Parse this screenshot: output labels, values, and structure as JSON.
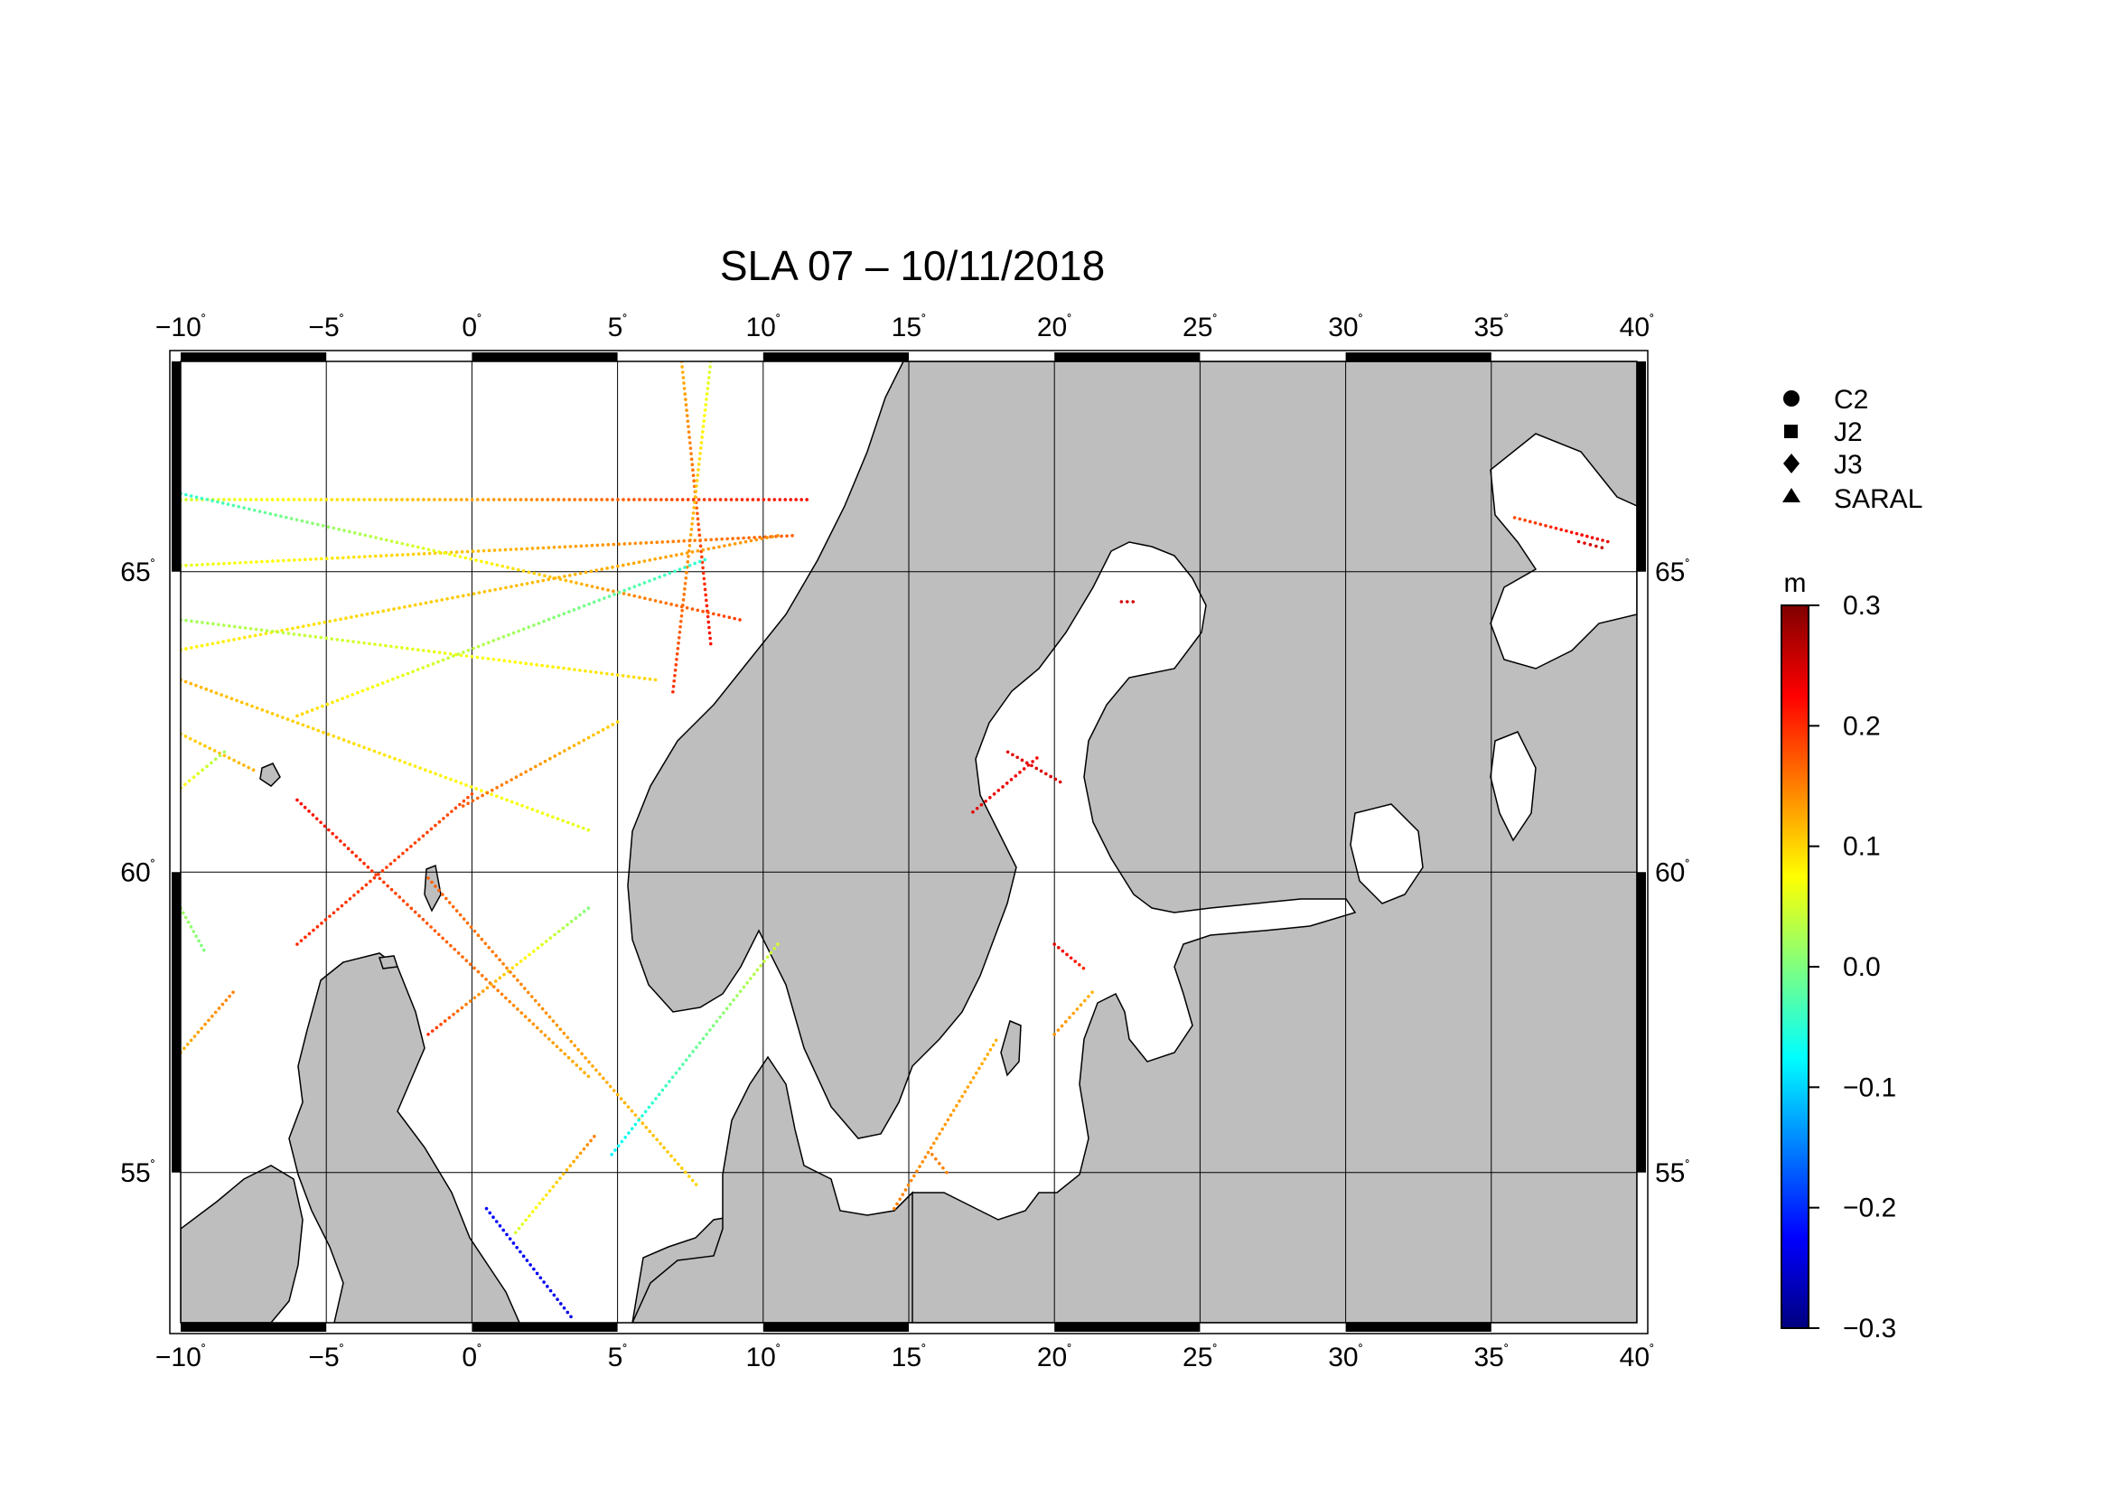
{
  "title": "SLA 07 – 10/11/2018",
  "map": {
    "lon_range": [
      -10,
      40
    ],
    "lat_range": [
      52.5,
      68.5
    ],
    "lon_ticks": [
      "−10",
      "−5",
      "0",
      "5",
      "10",
      "15",
      "20",
      "25",
      "30",
      "35",
      "40"
    ],
    "lat_ticks": [
      "55",
      "60",
      "65"
    ],
    "degree_symbol": "˚",
    "land_color": "#bebebe",
    "sea_color": "#ffffff",
    "grid": true
  },
  "legend": {
    "items": [
      {
        "label": "C2",
        "icon": "circle-icon"
      },
      {
        "label": "J2",
        "icon": "square-icon"
      },
      {
        "label": "J3",
        "icon": "diamond-icon"
      },
      {
        "label": "SARAL",
        "icon": "triangle-icon"
      }
    ]
  },
  "colorbar": {
    "unit": "m",
    "min": -0.3,
    "max": 0.3,
    "tick_labels": [
      "0.3",
      "0.2",
      "0.1",
      "0.0",
      "−0.1",
      "−0.2",
      "−0.3"
    ],
    "colors": [
      "#00007f",
      "#0000ff",
      "#007fff",
      "#00ffff",
      "#7fff7f",
      "#ffff00",
      "#ff7f00",
      "#ff0000",
      "#7f0000"
    ]
  },
  "tracks": [
    {
      "lon": [
        7.2,
        8.2
      ],
      "lat": [
        68.5,
        63.8
      ],
      "sla": [
        0.12,
        0.22
      ]
    },
    {
      "lon": [
        8.2,
        6.9
      ],
      "lat": [
        68.5,
        63.0
      ],
      "sla": [
        0.05,
        0.2
      ]
    },
    {
      "lon": [
        -10,
        11.5
      ],
      "lat": [
        66.2,
        66.2
      ],
      "sla": [
        0.05,
        0.22
      ]
    },
    {
      "lon": [
        -10,
        11
      ],
      "lat": [
        65.1,
        65.6
      ],
      "sla": [
        0.06,
        0.17
      ]
    },
    {
      "lon": [
        -10,
        9.2
      ],
      "lat": [
        66.3,
        64.2
      ],
      "sla": [
        -0.05,
        0.19
      ]
    },
    {
      "lon": [
        -10,
        10.5
      ],
      "lat": [
        63.7,
        65.6
      ],
      "sla": [
        0.08,
        0.14
      ]
    },
    {
      "lon": [
        -10,
        6.3
      ],
      "lat": [
        64.2,
        63.2
      ],
      "sla": [
        0.02,
        0.1
      ]
    },
    {
      "lon": [
        -6,
        8
      ],
      "lat": [
        62.6,
        65.2
      ],
      "sla": [
        0.1,
        -0.05
      ]
    },
    {
      "lon": [
        -10,
        4
      ],
      "lat": [
        63.2,
        60.7
      ],
      "sla": [
        0.12,
        0.06
      ]
    },
    {
      "lon": [
        -10,
        -7.5
      ],
      "lat": [
        62.3,
        61.7
      ],
      "sla": [
        0.1,
        0.12
      ]
    },
    {
      "lon": [
        -10,
        -8.5
      ],
      "lat": [
        61.4,
        62.0
      ],
      "sla": [
        0.08,
        0.02
      ]
    },
    {
      "lon": [
        -0.3,
        5
      ],
      "lat": [
        61.1,
        62.5
      ],
      "sla": [
        0.17,
        0.1
      ]
    },
    {
      "lon": [
        -6,
        4
      ],
      "lat": [
        61.2,
        56.6
      ],
      "sla": [
        0.22,
        0.12
      ]
    },
    {
      "lon": [
        -6,
        0
      ],
      "lat": [
        58.8,
        61.3
      ],
      "sla": [
        0.2,
        0.18
      ]
    },
    {
      "lon": [
        -1.5,
        4
      ],
      "lat": [
        57.3,
        59.4
      ],
      "sla": [
        0.2,
        0.0
      ]
    },
    {
      "lon": [
        -1.5,
        7.7
      ],
      "lat": [
        59.9,
        54.8
      ],
      "sla": [
        0.17,
        0.1
      ]
    },
    {
      "lon": [
        4.8,
        10.5
      ],
      "lat": [
        55.3,
        58.8
      ],
      "sla": [
        -0.08,
        0.05
      ]
    },
    {
      "lon": [
        1.5,
        4.2
      ],
      "lat": [
        54.0,
        55.6
      ],
      "sla": [
        0.05,
        0.15
      ]
    },
    {
      "lon": [
        0.5,
        3.4
      ],
      "lat": [
        54.4,
        52.6
      ],
      "sla": [
        -0.22,
        -0.24
      ]
    },
    {
      "lon": [
        -10,
        -9.2
      ],
      "lat": [
        59.4,
        58.7
      ],
      "sla": [
        0.02,
        0.0
      ]
    },
    {
      "lon": [
        -10,
        -8.2
      ],
      "lat": [
        57.0,
        58.0
      ],
      "sla": [
        0.12,
        0.15
      ]
    },
    {
      "lon": [
        18.4,
        20.2
      ],
      "lat": [
        62.0,
        61.5
      ],
      "sla": [
        0.24,
        0.25
      ]
    },
    {
      "lon": [
        17.2,
        19.4
      ],
      "lat": [
        61.0,
        61.9
      ],
      "sla": [
        0.24,
        0.23
      ]
    },
    {
      "lon": [
        20.0,
        21.0
      ],
      "lat": [
        58.8,
        58.4
      ],
      "sla": [
        0.24,
        0.2
      ]
    },
    {
      "lon": [
        20.0,
        21.3
      ],
      "lat": [
        57.3,
        58.0
      ],
      "sla": [
        0.14,
        0.12
      ]
    },
    {
      "lon": [
        14.5,
        18.0
      ],
      "lat": [
        54.4,
        57.2
      ],
      "sla": [
        0.15,
        0.12
      ]
    },
    {
      "lon": [
        15.8,
        16.3
      ],
      "lat": [
        55.3,
        55.0
      ],
      "sla": [
        0.15,
        0.15
      ]
    },
    {
      "lon": [
        22.3,
        22.7
      ],
      "lat": [
        64.5,
        64.5
      ],
      "sla": [
        0.25,
        0.25
      ]
    },
    {
      "lon": [
        35.8,
        39.0
      ],
      "lat": [
        65.9,
        65.5
      ],
      "sla": [
        0.18,
        0.24
      ]
    },
    {
      "lon": [
        38.0,
        38.8
      ],
      "lat": [
        65.5,
        65.4
      ],
      "sla": [
        0.24,
        0.26
      ]
    }
  ]
}
